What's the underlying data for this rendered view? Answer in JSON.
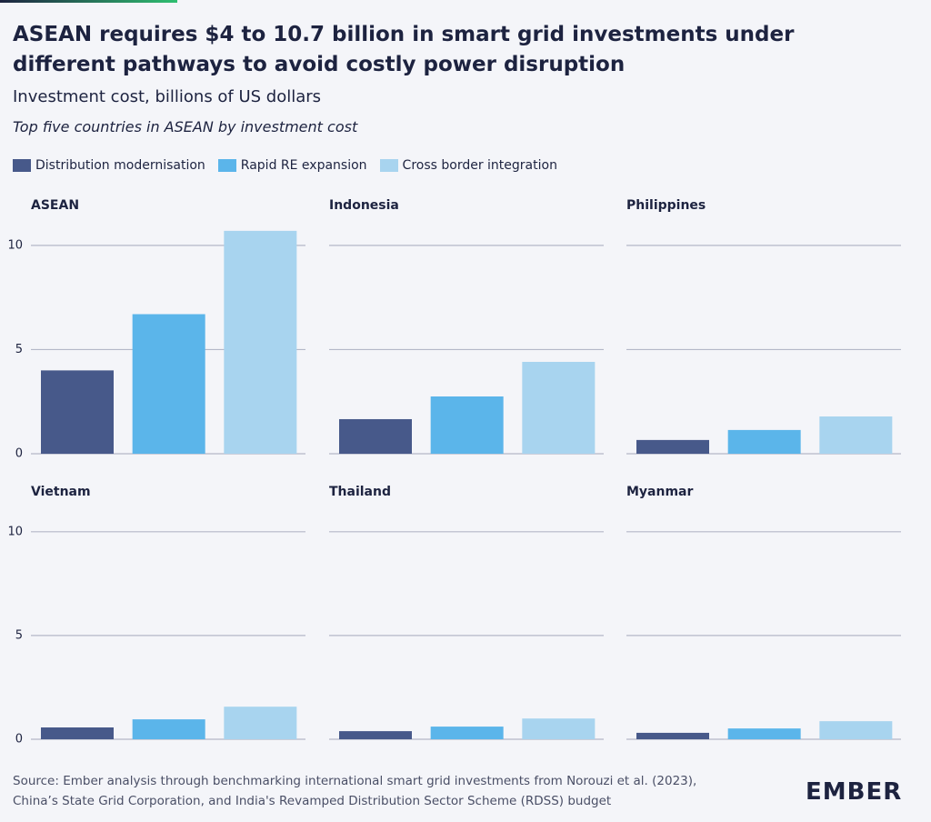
{
  "header": {
    "title": "ASEAN requires $4 to 10.7 billion in smart grid investments under different pathways to avoid costly power disruption",
    "subtitle": "Investment cost, billions of US dollars",
    "note": "Top five countries in ASEAN by investment cost"
  },
  "legend": [
    {
      "name": "Distribution modernisation",
      "color": "#47598a"
    },
    {
      "name": "Rapid RE expansion",
      "color": "#5bb5ea"
    },
    {
      "name": "Cross border integration",
      "color": "#a8d4ef"
    }
  ],
  "chart_data": [
    {
      "type": "bar",
      "title": "ASEAN",
      "values": [
        4.0,
        6.7,
        10.7
      ],
      "ylim": [
        0,
        11
      ],
      "yticks": [
        0,
        5,
        10
      ],
      "grid": true
    },
    {
      "type": "bar",
      "title": "Indonesia",
      "values": [
        1.66,
        2.75,
        4.41
      ],
      "ylim": [
        0,
        11
      ],
      "yticks": [
        0,
        5,
        10
      ],
      "grid": true
    },
    {
      "type": "bar",
      "title": "Philippines",
      "values": [
        0.66,
        1.14,
        1.79
      ],
      "ylim": [
        0,
        11
      ],
      "yticks": [
        0,
        5,
        10
      ],
      "grid": true
    },
    {
      "type": "bar",
      "title": "Vietnam",
      "values": [
        0.57,
        0.96,
        1.57
      ],
      "ylim": [
        0,
        11
      ],
      "yticks": [
        0,
        5,
        10
      ],
      "grid": true
    },
    {
      "type": "bar",
      "title": "Thailand",
      "values": [
        0.39,
        0.61,
        1.0
      ],
      "ylim": [
        0,
        11
      ],
      "yticks": [
        0,
        5,
        10
      ],
      "grid": true
    },
    {
      "type": "bar",
      "title": "Myanmar",
      "values": [
        0.31,
        0.52,
        0.87
      ],
      "ylim": [
        0,
        11
      ],
      "yticks": [
        0,
        5,
        10
      ],
      "grid": true
    }
  ],
  "footer": {
    "source": [
      "Source: Ember analysis through benchmarking international smart grid investments from Norouzi et al. (2023),",
      "China’s State Grid Corporation, and India's Revamped Distribution Sector Scheme (RDSS) budget"
    ],
    "logo": "EMBER"
  }
}
